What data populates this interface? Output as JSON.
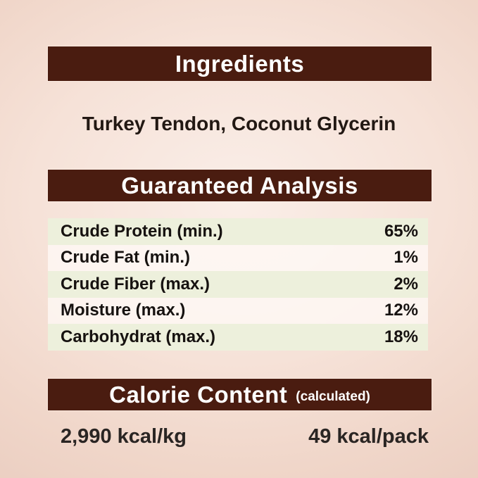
{
  "colors": {
    "bar_brown": "#4a1c10",
    "bar_text": "#ffffff",
    "row_green": "#edf0dc",
    "background_pink": "#f4ddd2"
  },
  "ingredients": {
    "title": "Ingredients",
    "content": "Turkey Tendon, Coconut Glycerin"
  },
  "analysis": {
    "title": "Guaranteed Analysis",
    "rows": [
      {
        "label": "Crude Protein (min.)",
        "value": "65%"
      },
      {
        "label": "Crude Fat (min.)",
        "value": "1%"
      },
      {
        "label": "Crude Fiber (max.)",
        "value": "2%"
      },
      {
        "label": "Moisture (max.)",
        "value": "12%"
      },
      {
        "label": "Carbohydrat (max.)",
        "value": "18%"
      }
    ]
  },
  "calorie": {
    "title": "Calorie Content",
    "subtitle": "(calculated)",
    "per_kg": "2,990 kcal/kg",
    "per_pack": "49 kcal/pack"
  }
}
